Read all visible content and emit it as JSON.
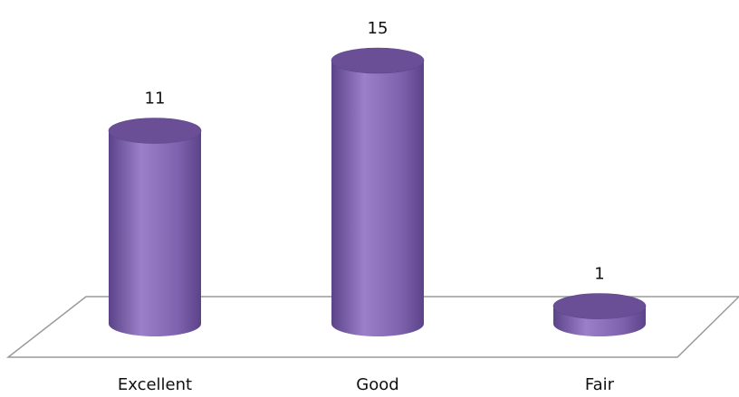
{
  "chart_data": {
    "type": "bar",
    "style": "3d-cylinder",
    "categories": [
      "Excellent",
      "Good",
      "Fair"
    ],
    "values": [
      11,
      15,
      1
    ],
    "data_labels": [
      "11",
      "15",
      "1"
    ],
    "title": "",
    "xlabel": "",
    "ylabel": "",
    "ylim": [
      0,
      15
    ],
    "grid": false,
    "legend": "none",
    "colors": {
      "bar_fill": "#7f62ae",
      "bar_light": "#9b80c8",
      "bar_dark": "#5b4389",
      "bar_top": "#6a4f97",
      "floor_stroke": "#9a9a9a"
    }
  }
}
